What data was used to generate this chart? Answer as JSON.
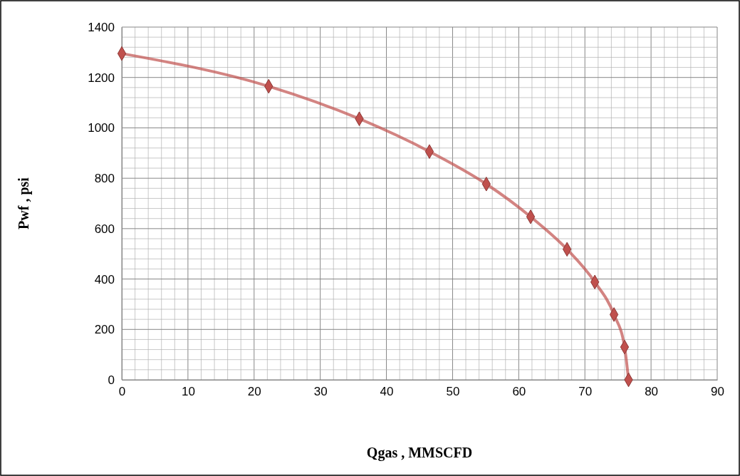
{
  "chart_data": {
    "type": "line",
    "xlabel": "Qgas , MMSCFD",
    "ylabel": "Pwf , psi",
    "x": [
      0,
      22.2,
      35.9,
      46.5,
      55.1,
      61.8,
      67.3,
      71.5,
      74.4,
      76.0,
      76.6
    ],
    "series": [
      {
        "color": "#c0504d",
        "values": [
          1295,
          1165,
          1036,
          906,
          777,
          647,
          518,
          388,
          259,
          130,
          0
        ]
      }
    ],
    "xlim": [
      0,
      90
    ],
    "ylim": [
      0,
      1400
    ],
    "xticks": [
      0,
      {
        "value": 2,
        "label": null
      },
      {
        "value": 4,
        "label": null
      },
      {
        "value": 6,
        "label": null
      },
      {
        "value": 8,
        "label": null
      },
      10,
      {
        "value": 12,
        "label": null
      },
      {
        "value": 14,
        "label": null
      },
      {
        "value": 16,
        "label": null
      },
      {
        "value": 18,
        "label": null
      },
      20,
      {
        "value": 22,
        "label": null
      },
      {
        "value": 24,
        "label": null
      },
      {
        "value": 26,
        "label": null
      },
      {
        "value": 28,
        "label": null
      },
      30,
      {
        "value": 32,
        "label": null
      },
      {
        "value": 34,
        "label": null
      },
      {
        "value": 36,
        "label": null
      },
      {
        "value": 38,
        "label": null
      },
      40,
      {
        "value": 42,
        "label": null
      },
      {
        "value": 44,
        "label": null
      },
      {
        "value": 46,
        "label": null
      },
      {
        "value": 48,
        "label": null
      },
      50,
      {
        "value": 52,
        "label": null
      },
      {
        "value": 54,
        "label": null
      },
      {
        "value": 56,
        "label": null
      },
      {
        "value": 58,
        "label": null
      },
      60,
      {
        "value": 62,
        "label": null
      },
      {
        "value": 64,
        "label": null
      },
      {
        "value": 66,
        "label": null
      },
      {
        "value": 68,
        "label": null
      },
      70,
      {
        "value": 72,
        "label": null
      },
      {
        "value": 74,
        "label": null
      },
      {
        "value": 76,
        "label": null
      },
      {
        "value": 78,
        "label": null
      },
      80,
      {
        "value": 82,
        "label": null
      },
      {
        "value": 84,
        "label": null
      },
      {
        "value": 86,
        "label": null
      },
      {
        "value": 88,
        "label": null
      },
      90
    ],
    "yticks": [
      0,
      {
        "value": 40,
        "label": null
      },
      {
        "value": 80,
        "label": null
      },
      {
        "value": 120,
        "label": null
      },
      {
        "value": 160,
        "label": null
      },
      200,
      {
        "value": 240,
        "label": null
      },
      {
        "value": 280,
        "label": null
      },
      {
        "value": 320,
        "label": null
      },
      {
        "value": 360,
        "label": null
      },
      400,
      {
        "value": 440,
        "label": null
      },
      {
        "value": 480,
        "label": null
      },
      {
        "value": 520,
        "label": null
      },
      {
        "value": 560,
        "label": null
      },
      600,
      {
        "value": 640,
        "label": null
      },
      {
        "value": 680,
        "label": null
      },
      {
        "value": 720,
        "label": null
      },
      {
        "value": 760,
        "label": null
      },
      800,
      {
        "value": 840,
        "label": null
      },
      {
        "value": 880,
        "label": null
      },
      {
        "value": 920,
        "label": null
      },
      {
        "value": 960,
        "label": null
      },
      1000,
      {
        "value": 1040,
        "label": null
      },
      {
        "value": 1080,
        "label": null
      },
      {
        "value": 1120,
        "label": null
      },
      {
        "value": 1160,
        "label": null
      },
      1200,
      {
        "value": 1240,
        "label": null
      },
      {
        "value": 1280,
        "label": null
      },
      {
        "value": 1320,
        "label": null
      },
      {
        "value": 1360,
        "label": null
      },
      1400
    ],
    "grid": true,
    "marker": "diamond",
    "line_style": "solid"
  }
}
